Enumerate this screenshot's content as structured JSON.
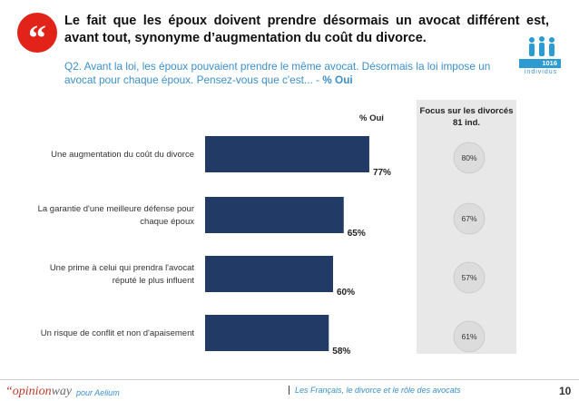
{
  "header": {
    "title": "Le fait que les époux doivent prendre désormais un avocat différent est, avant tout, synonyme d’augmentation du coût du divorce.",
    "question_text": "Q2. Avant la loi, les époux pouvaient prendre le même avocat. Désormais la loi impose un avocat pour chaque époux. Pensez-vous que c'est... - ",
    "question_highlight": "% Oui",
    "sample_size": "1016",
    "sample_label": "individus"
  },
  "legend": {
    "oui_label": "% Oui",
    "focus_title_line1": "Focus sur les divorcés",
    "focus_title_line2": "81 ind."
  },
  "colors": {
    "bar": "#213a66",
    "accent_red": "#e2231a",
    "accent_blue": "#3b8fc9",
    "circle": "#dcdcdc"
  },
  "chart_data": {
    "type": "bar",
    "orientation": "horizontal",
    "categories": [
      [
        "Une augmentation du coût du divorce"
      ],
      [
        "La garantie d'une meilleure défense pour",
        "chaque époux"
      ],
      [
        "Une prime à celui qui prendra l'avocat",
        "réputé le plus influent"
      ],
      [
        "Un risque de conflit et non d'apaisement"
      ]
    ],
    "series": [
      {
        "name": "% Oui",
        "values": [
          77,
          65,
          60,
          58
        ],
        "labels": [
          "77%",
          "65%",
          "60%",
          "58%"
        ]
      },
      {
        "name": "Focus sur les divorcés",
        "values": [
          80,
          67,
          57,
          61
        ],
        "labels": [
          "80%",
          "67%",
          "57%",
          "61%"
        ]
      }
    ],
    "xlim": [
      0,
      100
    ]
  },
  "footer": {
    "brand_opinion": "“opinion",
    "brand_way": "way",
    "pour": "pour  Aelium",
    "center_text": "Les Français, le divorce et le rôle des avocats",
    "page_number": "10"
  }
}
